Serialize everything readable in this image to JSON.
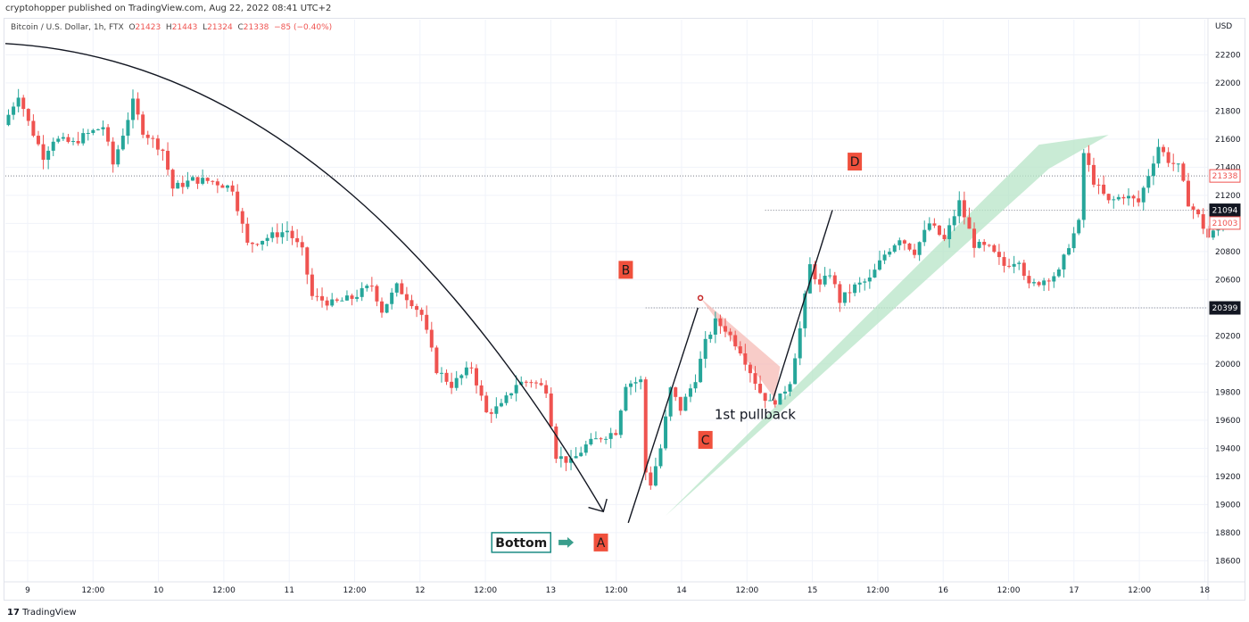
{
  "header": {
    "published_by": "cryptohopper published on TradingView.com, Aug 22, 2022 08:41 UTC+2"
  },
  "symbol": {
    "name": "Bitcoin / U.S. Dollar, 1h, FTX",
    "open_label": "O",
    "open": "21423",
    "high_label": "H",
    "high": "21443",
    "low_label": "L",
    "low": "21324",
    "close_label": "C",
    "close": "21338",
    "change": "−85 (−0.40%)"
  },
  "footer": {
    "brand": "TradingView"
  },
  "colors": {
    "up": "#26a69a",
    "down": "#ef5350",
    "label_red": "#f0503c",
    "bottom_box": "#1a8b83",
    "wedge_green": "#b7e4c7",
    "wedge_red": "#f5b7b1"
  },
  "chart_data": {
    "type": "candlestick",
    "currency": "USD",
    "timeframe": "1h",
    "y_axis": {
      "min": 18450,
      "max": 22450,
      "ticks": [
        18600,
        18800,
        19000,
        19200,
        19400,
        19600,
        19800,
        20000,
        20200,
        20400,
        20600,
        20800,
        21000,
        21200,
        21400,
        21600,
        21800,
        22000,
        22200
      ]
    },
    "x_axis": {
      "ticks": [
        "9",
        "12:00",
        "10",
        "12:00",
        "11",
        "12:00",
        "12",
        "12:00",
        "13",
        "12:00",
        "14",
        "12:00",
        "15",
        "12:00",
        "16",
        "12:00",
        "17",
        "12:00",
        "18"
      ]
    },
    "price_tags": [
      {
        "value": 21338,
        "label": "21338",
        "style": "red-outline"
      },
      {
        "value": 21094,
        "label": "21094",
        "style": "dark"
      },
      {
        "value": 21003,
        "label": "21003",
        "style": "red-outline"
      },
      {
        "value": 20399,
        "label": "20399",
        "style": "dark"
      }
    ],
    "waypoints": [
      {
        "t": 0,
        "p": 21700
      },
      {
        "t": 3,
        "p": 21920
      },
      {
        "t": 5,
        "p": 21720
      },
      {
        "t": 8,
        "p": 21480
      },
      {
        "t": 10,
        "p": 21600
      },
      {
        "t": 14,
        "p": 21570
      },
      {
        "t": 16,
        "p": 21620
      },
      {
        "t": 20,
        "p": 21690
      },
      {
        "t": 22,
        "p": 21420
      },
      {
        "t": 26,
        "p": 21860
      },
      {
        "t": 28,
        "p": 21660
      },
      {
        "t": 32,
        "p": 21520
      },
      {
        "t": 34,
        "p": 21250
      },
      {
        "t": 38,
        "p": 21310
      },
      {
        "t": 42,
        "p": 21300
      },
      {
        "t": 46,
        "p": 21250
      },
      {
        "t": 49,
        "p": 20850
      },
      {
        "t": 53,
        "p": 20900
      },
      {
        "t": 57,
        "p": 20950
      },
      {
        "t": 60,
        "p": 20800
      },
      {
        "t": 62,
        "p": 20480
      },
      {
        "t": 66,
        "p": 20430
      },
      {
        "t": 70,
        "p": 20470
      },
      {
        "t": 74,
        "p": 20560
      },
      {
        "t": 76,
        "p": 20380
      },
      {
        "t": 79,
        "p": 20550
      },
      {
        "t": 82,
        "p": 20440
      },
      {
        "t": 84,
        "p": 20350
      },
      {
        "t": 87,
        "p": 19960
      },
      {
        "t": 90,
        "p": 19850
      },
      {
        "t": 94,
        "p": 19980
      },
      {
        "t": 97,
        "p": 19650
      },
      {
        "t": 100,
        "p": 19700
      },
      {
        "t": 103,
        "p": 19860
      },
      {
        "t": 106,
        "p": 19880
      },
      {
        "t": 109,
        "p": 19820
      },
      {
        "t": 111,
        "p": 19350
      },
      {
        "t": 114,
        "p": 19300
      },
      {
        "t": 117,
        "p": 19420
      },
      {
        "t": 120,
        "p": 19480
      },
      {
        "t": 123,
        "p": 19520
      },
      {
        "t": 125,
        "p": 19860
      },
      {
        "t": 128,
        "p": 19880
      },
      {
        "t": 129,
        "p": 19230
      },
      {
        "t": 130,
        "p": 19150
      },
      {
        "t": 132,
        "p": 19400
      },
      {
        "t": 134,
        "p": 19820
      },
      {
        "t": 136,
        "p": 19680
      },
      {
        "t": 139,
        "p": 19900
      },
      {
        "t": 141,
        "p": 20150
      },
      {
        "t": 143,
        "p": 20300
      },
      {
        "t": 145,
        "p": 20250
      },
      {
        "t": 148,
        "p": 20100
      },
      {
        "t": 150,
        "p": 19950
      },
      {
        "t": 152,
        "p": 19800
      },
      {
        "t": 154,
        "p": 19720
      },
      {
        "t": 156,
        "p": 19760
      },
      {
        "t": 158,
        "p": 19880
      },
      {
        "t": 160,
        "p": 20250
      },
      {
        "t": 162,
        "p": 20700
      },
      {
        "t": 164,
        "p": 20550
      },
      {
        "t": 166,
        "p": 20650
      },
      {
        "t": 168,
        "p": 20450
      },
      {
        "t": 171,
        "p": 20550
      },
      {
        "t": 174,
        "p": 20600
      },
      {
        "t": 177,
        "p": 20780
      },
      {
        "t": 180,
        "p": 20900
      },
      {
        "t": 183,
        "p": 20800
      },
      {
        "t": 186,
        "p": 21000
      },
      {
        "t": 189,
        "p": 20880
      },
      {
        "t": 192,
        "p": 21150
      },
      {
        "t": 195,
        "p": 20850
      },
      {
        "t": 198,
        "p": 20820
      },
      {
        "t": 201,
        "p": 20700
      },
      {
        "t": 204,
        "p": 20750
      },
      {
        "t": 206,
        "p": 20550
      },
      {
        "t": 209,
        "p": 20600
      },
      {
        "t": 212,
        "p": 20650
      },
      {
        "t": 214,
        "p": 20850
      },
      {
        "t": 216,
        "p": 21000
      },
      {
        "t": 217,
        "p": 21500
      },
      {
        "t": 219,
        "p": 21300
      },
      {
        "t": 222,
        "p": 21150
      },
      {
        "t": 225,
        "p": 21200
      },
      {
        "t": 228,
        "p": 21150
      },
      {
        "t": 230,
        "p": 21350
      },
      {
        "t": 232,
        "p": 21550
      },
      {
        "t": 234,
        "p": 21450
      },
      {
        "t": 236,
        "p": 21400
      },
      {
        "t": 238,
        "p": 21150
      },
      {
        "t": 240,
        "p": 21050
      },
      {
        "t": 242,
        "p": 20900
      },
      {
        "t": 245,
        "p": 21000
      }
    ],
    "x_ticks_at_candle": [
      3,
      26.5,
      50,
      73.5,
      97,
      120.5,
      144,
      167.5,
      191,
      214.5,
      238
    ],
    "levels": [
      {
        "value": 21338,
        "style": "dotted",
        "extent": "full"
      },
      {
        "value": 21094,
        "style": "dotted",
        "from_t": 152
      },
      {
        "value": 20399,
        "style": "dotted",
        "from_t": 128
      }
    ],
    "annotations": [
      {
        "type": "label",
        "text": "A",
        "at": {
          "t": 119,
          "p": 18730
        },
        "style": "red-box"
      },
      {
        "type": "label",
        "text": "B",
        "at": {
          "t": 124,
          "p": 20670
        },
        "style": "red-box"
      },
      {
        "type": "label",
        "text": "C",
        "at": {
          "t": 140,
          "p": 19460
        },
        "style": "red-box"
      },
      {
        "type": "label",
        "text": "D",
        "at": {
          "t": 170,
          "p": 21440
        },
        "style": "red-box"
      },
      {
        "type": "label",
        "text": "Bottom",
        "at": {
          "t": 103,
          "p": 18730
        },
        "style": "green-outline-box"
      },
      {
        "type": "text",
        "text": "1st pullback",
        "at": {
          "t": 142,
          "p": 19640
        }
      },
      {
        "type": "arrow",
        "from": {
          "t": 110.5,
          "p": 18730
        },
        "to": {
          "t": 113,
          "p": 18730
        },
        "style": "teal"
      },
      {
        "type": "circle",
        "at": {
          "t": 139,
          "p": 20470
        },
        "style": "red"
      }
    ]
  }
}
